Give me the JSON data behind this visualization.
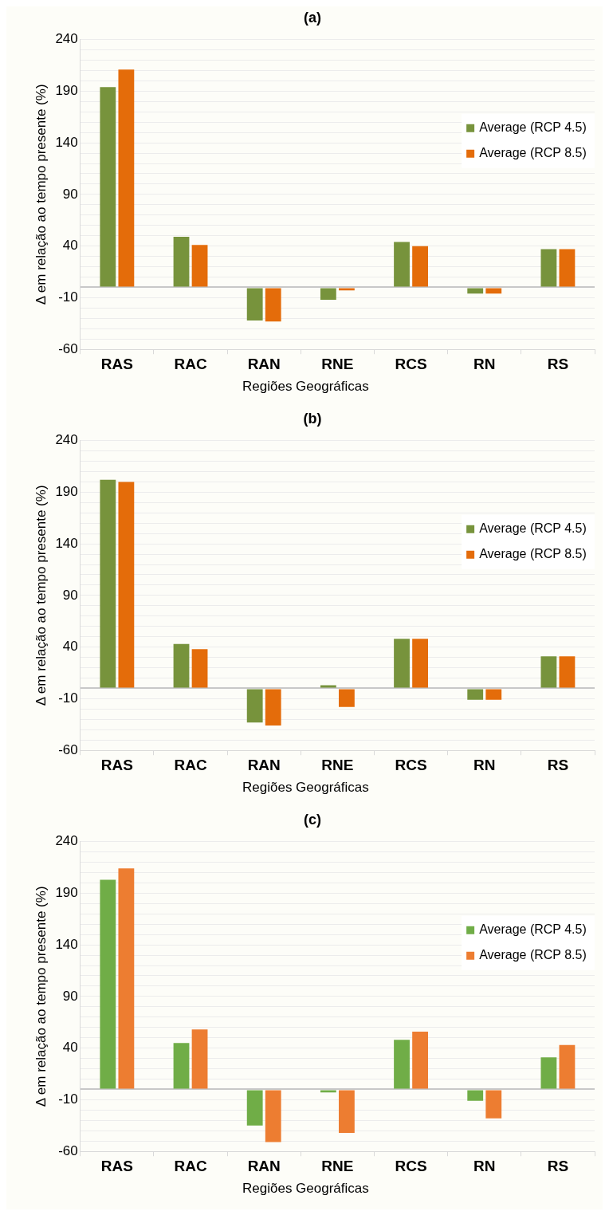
{
  "chart_data": [
    {
      "type": "bar",
      "title": "(a)",
      "xlabel": "Regiões Geográficas",
      "ylabel": "Δ em relação ao tempo presente (%)",
      "categories": [
        "RAS",
        "RAC",
        "RAN",
        "RNE",
        "RCS",
        "RN",
        "RS"
      ],
      "series": [
        {
          "name": "Average (RCP 4.5)",
          "color": "#77933c",
          "values": [
            194,
            49,
            -32,
            -12,
            44,
            -6,
            37
          ]
        },
        {
          "name": "Average (RCP 8.5)",
          "color": "#e46c0a",
          "values": [
            211,
            41,
            -33,
            -3,
            40,
            -6,
            37
          ]
        }
      ],
      "ylim": [
        -60,
        240
      ],
      "yticks": [
        -60,
        {
          "value": -50,
          "label": null
        },
        {
          "value": -40,
          "label": null
        },
        {
          "value": -30,
          "label": null
        },
        {
          "value": -20,
          "label": null
        },
        -10,
        {
          "value": 0,
          "label": null
        },
        {
          "value": 10,
          "label": null
        },
        {
          "value": 20,
          "label": null
        },
        {
          "value": 30,
          "label": null
        },
        40,
        {
          "value": 50,
          "label": null
        },
        {
          "value": 60,
          "label": null
        },
        {
          "value": 70,
          "label": null
        },
        {
          "value": 80,
          "label": null
        },
        90,
        {
          "value": 100,
          "label": null
        },
        {
          "value": 110,
          "label": null
        },
        {
          "value": 120,
          "label": null
        },
        {
          "value": 130,
          "label": null
        },
        140,
        {
          "value": 150,
          "label": null
        },
        {
          "value": 160,
          "label": null
        },
        {
          "value": 170,
          "label": null
        },
        {
          "value": 180,
          "label": null
        },
        190,
        {
          "value": 200,
          "label": null
        },
        {
          "value": 210,
          "label": null
        },
        {
          "value": 220,
          "label": null
        },
        {
          "value": 230,
          "label": null
        },
        240
      ],
      "grid": "y",
      "legend": "right"
    },
    {
      "type": "bar",
      "title": "(b)",
      "xlabel": "Regiões Geográficas",
      "ylabel": "Δ em relação ao tempo presente (%)",
      "categories": [
        "RAS",
        "RAC",
        "RAN",
        "RNE",
        "RCS",
        "RN",
        "RS"
      ],
      "series": [
        {
          "name": "Average (RCP 4.5)",
          "color": "#77933c",
          "values": [
            202,
            43,
            -33,
            3,
            48,
            -11,
            31
          ]
        },
        {
          "name": "Average (RCP 8.5)",
          "color": "#e46c0a",
          "values": [
            200,
            38,
            -36,
            -18,
            48,
            -11,
            31
          ]
        }
      ],
      "ylim": [
        -60,
        240
      ],
      "yticks": [
        -60,
        {
          "value": -50,
          "label": null
        },
        {
          "value": -40,
          "label": null
        },
        {
          "value": -30,
          "label": null
        },
        {
          "value": -20,
          "label": null
        },
        -10,
        {
          "value": 0,
          "label": null
        },
        {
          "value": 10,
          "label": null
        },
        {
          "value": 20,
          "label": null
        },
        {
          "value": 30,
          "label": null
        },
        40,
        {
          "value": 50,
          "label": null
        },
        {
          "value": 60,
          "label": null
        },
        {
          "value": 70,
          "label": null
        },
        {
          "value": 80,
          "label": null
        },
        90,
        {
          "value": 100,
          "label": null
        },
        {
          "value": 110,
          "label": null
        },
        {
          "value": 120,
          "label": null
        },
        {
          "value": 130,
          "label": null
        },
        140,
        {
          "value": 150,
          "label": null
        },
        {
          "value": 160,
          "label": null
        },
        {
          "value": 170,
          "label": null
        },
        {
          "value": 180,
          "label": null
        },
        190,
        {
          "value": 200,
          "label": null
        },
        {
          "value": 210,
          "label": null
        },
        {
          "value": 220,
          "label": null
        },
        {
          "value": 230,
          "label": null
        },
        240
      ],
      "grid": "y",
      "legend": "right"
    },
    {
      "type": "bar",
      "title": "(c)",
      "xlabel": "Regiões Geográficas",
      "ylabel": "Δ em relação ao tempo presente (%)",
      "categories": [
        "RAS",
        "RAC",
        "RAN",
        "RNE",
        "RCS",
        "RN",
        "RS"
      ],
      "series": [
        {
          "name": "Average (RCP 4.5)",
          "color": "#70ad47",
          "values": [
            203,
            45,
            -35,
            -3,
            48,
            -11,
            31
          ]
        },
        {
          "name": "Average (RCP 8.5)",
          "color": "#ed7d31",
          "values": [
            214,
            58,
            -51,
            -42,
            56,
            -28,
            43
          ]
        }
      ],
      "ylim": [
        -60,
        240
      ],
      "yticks": [
        -60,
        {
          "value": -50,
          "label": null
        },
        {
          "value": -40,
          "label": null
        },
        {
          "value": -30,
          "label": null
        },
        {
          "value": -20,
          "label": null
        },
        -10,
        {
          "value": 0,
          "label": null
        },
        {
          "value": 10,
          "label": null
        },
        {
          "value": 20,
          "label": null
        },
        {
          "value": 30,
          "label": null
        },
        40,
        {
          "value": 50,
          "label": null
        },
        {
          "value": 60,
          "label": null
        },
        {
          "value": 70,
          "label": null
        },
        {
          "value": 80,
          "label": null
        },
        90,
        {
          "value": 100,
          "label": null
        },
        {
          "value": 110,
          "label": null
        },
        {
          "value": 120,
          "label": null
        },
        {
          "value": 130,
          "label": null
        },
        140,
        {
          "value": 150,
          "label": null
        },
        {
          "value": 160,
          "label": null
        },
        {
          "value": 170,
          "label": null
        },
        {
          "value": 180,
          "label": null
        },
        190,
        {
          "value": 200,
          "label": null
        },
        {
          "value": 210,
          "label": null
        },
        {
          "value": 220,
          "label": null
        },
        {
          "value": 230,
          "label": null
        },
        240
      ],
      "grid": "y",
      "legend": "right"
    }
  ]
}
